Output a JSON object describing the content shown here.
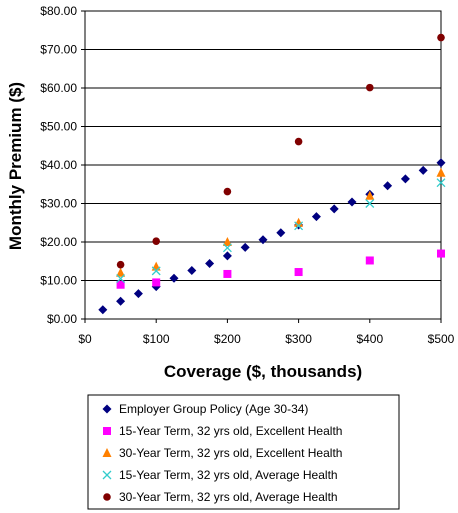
{
  "chart_data": {
    "type": "scatter",
    "title": "",
    "xlabel": "Coverage ($, thousands)",
    "ylabel": "Monthly Premium ($)",
    "xlim": [
      0,
      500
    ],
    "ylim": [
      0,
      80
    ],
    "x_ticks": [
      0,
      100,
      200,
      300,
      400,
      500
    ],
    "x_tick_labels": [
      "$0",
      "$100",
      "$200",
      "$300",
      "$400",
      "$500"
    ],
    "y_ticks": [
      0,
      10,
      20,
      30,
      40,
      50,
      60,
      70,
      80
    ],
    "y_tick_labels": [
      "$0.00",
      "$10.00",
      "$20.00",
      "$30.00",
      "$40.00",
      "$50.00",
      "$60.00",
      "$70.00",
      "$80.00"
    ],
    "grid": "horizontal",
    "legend_position": "bottom",
    "series": [
      {
        "name": "Employer Group Policy (Age 30-34)",
        "marker": "diamond",
        "color": "#000080",
        "points": [
          [
            25,
            2.4
          ],
          [
            50,
            4.6
          ],
          [
            75,
            6.6
          ],
          [
            100,
            8.4
          ],
          [
            125,
            10.6
          ],
          [
            150,
            12.6
          ],
          [
            175,
            14.4
          ],
          [
            200,
            16.4
          ],
          [
            225,
            18.6
          ],
          [
            250,
            20.6
          ],
          [
            275,
            22.4
          ],
          [
            300,
            24.4
          ],
          [
            325,
            26.6
          ],
          [
            350,
            28.6
          ],
          [
            375,
            30.4
          ],
          [
            400,
            32.4
          ],
          [
            425,
            34.6
          ],
          [
            450,
            36.4
          ],
          [
            475,
            38.6
          ],
          [
            500,
            40.6
          ]
        ]
      },
      {
        "name": "15-Year Term, 32 yrs old, Excellent Health",
        "marker": "square",
        "color": "#ff00ff",
        "points": [
          [
            50,
            8.9
          ],
          [
            100,
            9.5
          ],
          [
            200,
            11.7
          ],
          [
            300,
            12.2
          ],
          [
            400,
            15.2
          ],
          [
            500,
            17.0
          ]
        ]
      },
      {
        "name": "30-Year Term, 32 yrs old, Excellent Health",
        "marker": "triangle",
        "color": "#ff8000",
        "points": [
          [
            50,
            12.0
          ],
          [
            100,
            13.6
          ],
          [
            200,
            20.0
          ],
          [
            300,
            25.0
          ],
          [
            400,
            32.0
          ],
          [
            500,
            38.0
          ]
        ]
      },
      {
        "name": "15-Year Term, 32 yrs old, Average Health",
        "marker": "x",
        "color": "#33cccc",
        "points": [
          [
            50,
            10.5
          ],
          [
            100,
            12.5
          ],
          [
            200,
            18.5
          ],
          [
            300,
            24.2
          ],
          [
            400,
            30.0
          ],
          [
            500,
            35.4
          ]
        ]
      },
      {
        "name": "30-Year Term, 32 yrs old, Average Health",
        "marker": "circle",
        "color": "#800000",
        "points": [
          [
            50,
            14.1
          ],
          [
            100,
            20.2
          ],
          [
            200,
            33.1
          ],
          [
            300,
            46.1
          ],
          [
            400,
            60.1
          ],
          [
            500,
            73.1
          ]
        ]
      }
    ]
  }
}
